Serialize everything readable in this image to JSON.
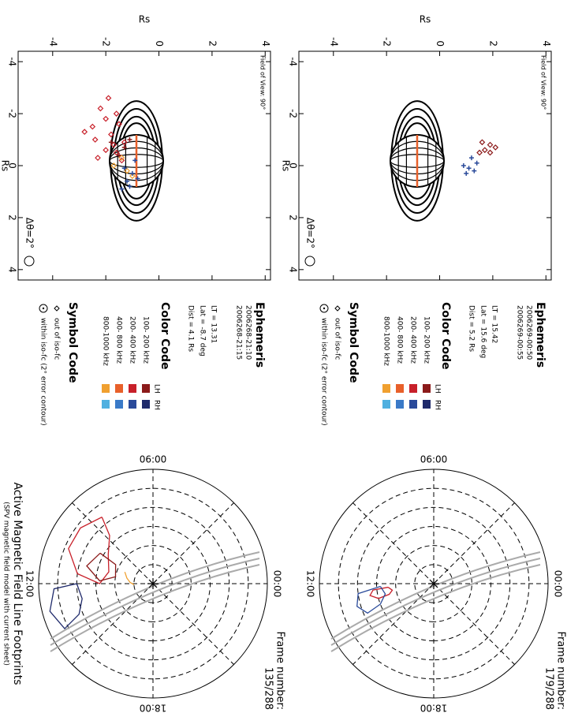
{
  "chart_data": [
    {
      "type": "scatter",
      "xlabel": "Rs",
      "ylabel": "Rs",
      "xlim": [
        -4.4,
        4.4
      ],
      "ylim": [
        -5.3,
        4.2
      ],
      "xticks": [
        -4,
        -2,
        0,
        2,
        4
      ],
      "yticks": [
        -4,
        -2,
        0,
        2,
        4
      ],
      "fov": "Field of View: 90°",
      "dtheta": "Δθ=2°",
      "ephemeris": {
        "title": "Ephemeris",
        "times": [
          "2006269-00:50",
          "2006269-00:55"
        ],
        "lt": "LT = 15.42",
        "lat": "Lat = 15.6 deg",
        "dist": "Dist = 5.2 Rs"
      },
      "series": [
        {
          "color": "#8b1a1a",
          "marker": "diamond",
          "x": [
            -0.8,
            -0.6,
            -0.5,
            -0.5,
            -0.9,
            -0.7
          ],
          "y": [
            1.9,
            1.7,
            1.5,
            1.9,
            1.6,
            2.1
          ]
        },
        {
          "color": "#2a4a9a",
          "marker": "plus",
          "x": [
            -0.3,
            0.1,
            0.0,
            0.2,
            0.3,
            -0.1
          ],
          "y": [
            1.2,
            1.1,
            0.9,
            1.3,
            1.0,
            1.4
          ]
        }
      ]
    },
    {
      "type": "polar",
      "frame_label": "Frame number:",
      "frame": "179/288",
      "rlim": [
        0,
        30
      ],
      "rticks": [
        5,
        10,
        15,
        20,
        25,
        30
      ],
      "lt_grid": [
        0,
        3,
        6,
        9,
        12,
        15,
        18,
        21
      ],
      "lt_ticks": [
        {
          "value": 0,
          "label": "00:00"
        },
        {
          "value": 6,
          "label": "06:00"
        },
        {
          "value": 12,
          "label": "12:00"
        },
        {
          "value": 18,
          "label": "18:00"
        }
      ],
      "series": [
        {
          "color": "#c8202a",
          "lt": [
            12.3,
            12.6,
            12.9,
            13.0,
            12.7,
            12.4,
            12.3
          ],
          "colat": [
            12,
            11,
            12,
            15,
            17,
            16,
            12
          ]
        },
        {
          "color": "#2a4a9a",
          "lt": [
            12.2,
            12.8,
            13.4,
            13.6,
            13.1,
            12.5,
            12.2
          ],
          "colat": [
            14,
            13,
            15,
            19,
            21,
            20,
            14
          ]
        }
      ]
    },
    {
      "type": "scatter",
      "xlabel": "Rs",
      "ylabel": "Rs",
      "xlim": [
        -4.4,
        4.4
      ],
      "ylim": [
        -5.3,
        4.2
      ],
      "xticks": [
        -4,
        -2,
        0,
        2,
        4
      ],
      "yticks": [
        -4,
        -2,
        0,
        2,
        4
      ],
      "fov": "Field of View: 90°",
      "dtheta": "Δθ=2°",
      "ephemeris": {
        "title": "Ephemeris",
        "times": [
          "2006268-21:10",
          "2006268-21:15"
        ],
        "lt": "LT = 13.31",
        "lat": "Lat = -8.7 deg",
        "dist": "Dist = 4.1 Rs"
      },
      "series": [
        {
          "color": "#c8202a",
          "marker": "diamond",
          "x": [
            -2.2,
            -1.8,
            -1.5,
            -1.2,
            -1.6,
            -1.3,
            -0.9,
            -0.6,
            -0.5,
            -0.3,
            -0.2,
            -2.6,
            -1.0,
            -2.0,
            -0.8
          ],
          "y": [
            -2.2,
            -2.0,
            -2.5,
            -1.8,
            -1.5,
            -2.8,
            -1.3,
            -2.0,
            -1.6,
            -2.3,
            -1.4,
            -1.9,
            -2.4,
            -1.6,
            -1.7
          ]
        },
        {
          "color": "#8b1a1a",
          "marker": "plus",
          "x": [
            -0.7,
            -0.4,
            -1.0,
            -0.9
          ],
          "y": [
            -1.3,
            -1.5,
            -1.1,
            -1.8
          ]
        },
        {
          "color": "#f0a030",
          "marker": "diamond",
          "x": [
            -0.3,
            0.2,
            0.0,
            0.4
          ],
          "y": [
            -1.4,
            -1.2,
            -1.7,
            -1.0
          ]
        },
        {
          "color": "#2a4a9a",
          "marker": "plus",
          "x": [
            0.3,
            0.6,
            0.5,
            0.9,
            0.8,
            -0.2,
            0.1
          ],
          "y": [
            -1.0,
            -1.2,
            -0.8,
            -1.4,
            -1.1,
            -0.9,
            -1.3
          ]
        }
      ]
    },
    {
      "type": "polar",
      "frame_label": "Frame number:",
      "frame": "135/288",
      "rlim": [
        0,
        30
      ],
      "rticks": [
        5,
        10,
        15,
        20,
        25,
        30
      ],
      "lt_grid": [
        0,
        3,
        6,
        9,
        12,
        15,
        18,
        21
      ],
      "lt_ticks": [
        {
          "value": 0,
          "label": "00:00"
        },
        {
          "value": 6,
          "label": "06:00"
        },
        {
          "value": 12,
          "label": "12:00"
        },
        {
          "value": 18,
          "label": "18:00"
        }
      ],
      "caption": "Active Magnetic Field Line Footprints",
      "subcaption": "(SPV magnetic field model with current sheet)",
      "series": [
        {
          "color": "#c8202a",
          "lt": [
            8.5,
            9.5,
            10.5,
            11.5,
            12.0,
            11.0,
            9.8,
            8.8,
            8.5
          ],
          "colat": [
            22,
            24,
            24,
            20,
            14,
            12,
            14,
            17,
            22
          ]
        },
        {
          "color": "#8b1a1a",
          "lt": [
            10,
            11,
            11.8,
            11.3,
            10.2,
            10
          ],
          "colat": [
            16,
            18,
            14,
            10,
            11,
            16
          ]
        },
        {
          "color": "#f0a030",
          "lt": [
            10.5,
            11.2,
            11.8,
            12.2
          ],
          "colat": [
            8,
            7,
            6,
            5
          ]
        },
        {
          "color": "#1f2a6b",
          "lt": [
            12.0,
            12.8,
            13.5,
            13.8,
            13.0,
            12.2,
            12.0
          ],
          "colat": [
            20,
            19,
            21,
            26,
            28,
            26,
            20
          ]
        }
      ]
    }
  ],
  "color_code": {
    "title": "Color Code",
    "columns": [
      "LH",
      "RH"
    ],
    "bands": [
      "100- 200 kHz",
      "200- 400 kHz",
      "400- 800 kHz",
      "800-1000 kHz"
    ],
    "lh_colors": [
      "#8b1a1a",
      "#c8202a",
      "#e8602a",
      "#f0a030"
    ],
    "rh_colors": [
      "#1f2a6b",
      "#2a4a9a",
      "#3a7ac8",
      "#50b0e0"
    ]
  },
  "symbol_code": {
    "title": "Symbol Code",
    "items": [
      "out of iso-fc",
      "within iso-fc (2° error contour)"
    ]
  }
}
